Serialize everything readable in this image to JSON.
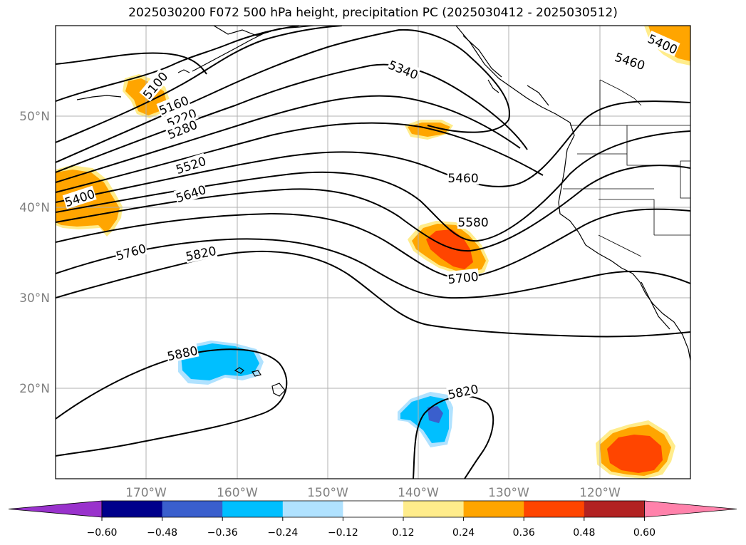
{
  "title": "2025030200 F072 500 hPa height, precipitation PC (2025030412 - 2025030512)",
  "lat_labels": [
    "50°N",
    "40°N",
    "30°N",
    "20°N"
  ],
  "lon_labels": [
    "170°W",
    "160°W",
    "150°W",
    "140°W",
    "130°W",
    "120°W"
  ],
  "contour_labels": [
    "5100",
    "5160",
    "5220",
    "5280",
    "5520",
    "5640",
    "5760",
    "5820",
    "5400",
    "5340",
    "5460",
    "5460",
    "5400",
    "5580",
    "5700",
    "5880",
    "5820"
  ],
  "colorbar": {
    "ticks": [
      "−0.60",
      "−0.48",
      "−0.36",
      "−0.24",
      "−0.12",
      "0.12",
      "0.24",
      "0.36",
      "0.48",
      "0.60"
    ],
    "colors": [
      "#9932cc",
      "#00008b",
      "#3a5fcd",
      "#00bfff",
      "#b0e2ff",
      "#ffffff",
      "#ffec8b",
      "#ffa500",
      "#ff4500",
      "#b22222",
      "#ff82ab"
    ]
  },
  "colors": {
    "orange": "#ffa500",
    "red_orange": "#ff4500",
    "light_yellow": "#ffec8b",
    "deep_sky_blue": "#00bfff",
    "light_blue": "#b0e2ff",
    "royal_blue": "#3a5fcd"
  }
}
